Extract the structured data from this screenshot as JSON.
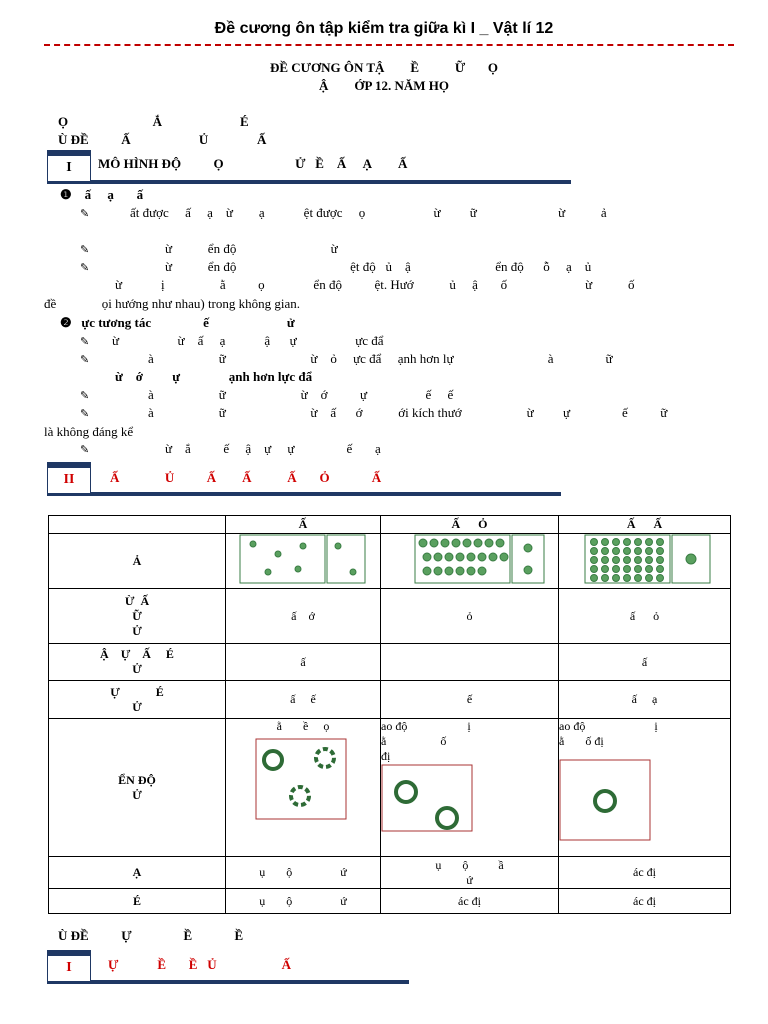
{
  "header": {
    "title": "Đề cương ôn tập kiểm tra giữa kì I _ Vật lí 12"
  },
  "doc_title": [
    "ĐỀ CƯƠNG ÔN TẬ        Ề           Ữ       Ọ",
    "Ậ        ỚP 12. NĂM HỌ"
  ],
  "part_heading": [
    "Ọ                          Ắ                        É",
    "Ù ĐỀ          Ấ                     Ủ               Ấ"
  ],
  "section1": {
    "number": "I",
    "title": "MÔ HÌNH ĐỘ          Ọ                      Ử   Ề    Ấ     Ạ        Ấ"
  },
  "body": [
    "❶    ấ     ạ       ấ",
    "ất được     ấ     ạ    ừ        ạ            ệt được     ọ                     ừ         ữ                         ừ           ả",
    "ừ           ển độ                             ừ",
    "ừ           ển độ                                   ệt độ   ủ    ậ                          ển độ      ỗ     ạ    ủ",
    "ừ            ị                 ằ          ọ               ển độ          ệt. Hướ           ủ     ậ       ố                        ừ           ố",
    "đề              ọi hướng như nhau) trong không gian.",
    "❷   ực tương tác                ế                        ử",
    "ừ                  ừ    ấ     ạ            ậ      ự                  ực đẩ",
    "à                    ữ                          ừ    ỏ     ực đẩ     ạnh hơn lự                             à                ữ",
    "ừ    ớ         ự               ạnh hơn lực đẩ",
    "à                    ữ                       ừ    ớ          ự                  ế     ế",
    "à                    ữ                          ừ    ấ      ớ           ới kích thướ                    ừ         ự                ế          ữ",
    "là không đáng kể",
    "ừ    ắ          ế     ậ    ự     ự                ế       ạ"
  ],
  "section2": {
    "number": "II",
    "title": "Ấ              Ủ          Ấ        Ấ           Ấ       Ỏ             Ấ"
  },
  "table": {
    "header": [
      "Ấ",
      "Ấ      Ỏ",
      "Ấ      Ấ"
    ],
    "rows": [
      {
        "label": [
          "Ả"
        ],
        "cells": [
          [],
          [],
          []
        ]
      },
      {
        "label": [
          "Ừ  Ấ",
          "Ữ",
          "Ử"
        ],
        "cells": [
          [
            "ấ    ớ"
          ],
          [
            "ỏ"
          ],
          [
            "ấ      ỏ"
          ]
        ]
      },
      {
        "label": [
          "Ậ    Ự    Ấ     É",
          "Ử"
        ],
        "cells": [
          [
            "ấ"
          ],
          [],
          [
            "ấ"
          ]
        ]
      },
      {
        "label": [
          "Ự            É",
          "Ử"
        ],
        "cells": [
          [
            "ấ     ế"
          ],
          [
            "ế"
          ],
          [
            "ấ     ạ"
          ]
        ]
      },
      {
        "label": [
          "ỂN ĐỘ",
          "Ử"
        ],
        "cells": [
          [
            "ằ       ề     ọ"
          ],
          [
            "ao độ                    ị",
            "ằ                  ố",
            "đị"
          ],
          [
            "ao độ                       ị",
            "ằ       ố đị"
          ]
        ]
      },
      {
        "label": [
          "Ạ"
        ],
        "cells": [
          [
            "ụ       ộ                ứ"
          ],
          [
            "ụ       ộ          ầ",
            "ứ"
          ],
          [
            "ác đị"
          ]
        ]
      },
      {
        "label": [
          "É"
        ],
        "cells": [
          [
            "ụ       ộ                ứ"
          ],
          [
            "ác đị"
          ],
          [
            "ác đị"
          ]
        ]
      }
    ]
  },
  "part2_heading": "Ù ĐỀ          Ự                Ề             Ề",
  "section3": {
    "number": "I",
    "title": "Ự            Ề       Ề   Ủ                    Ấ"
  }
}
